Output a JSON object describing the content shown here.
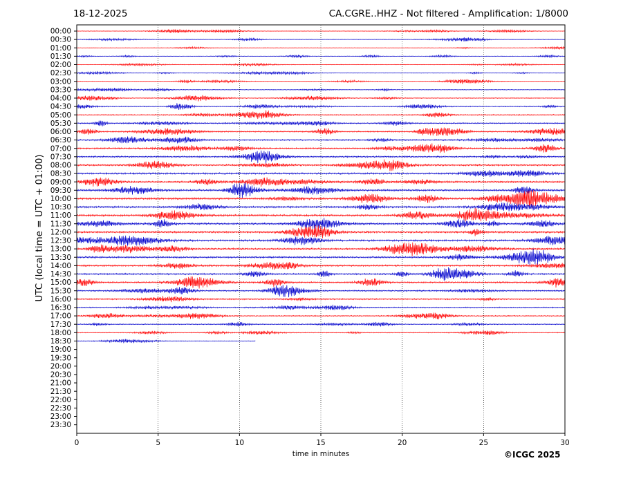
{
  "header": {
    "date": "18-12-2025",
    "title": "CA.CGRE..HHZ - Not filtered - Amplification: 1/8000"
  },
  "footer": {
    "copyright": "©ICGC 2025"
  },
  "colors": {
    "trace_a": "#ff0000",
    "trace_b": "#0000cc",
    "grid": "#000000"
  },
  "chart_data": {
    "type": "line",
    "subtype": "helicorder",
    "title": "CA.CGRE..HHZ - Not filtered - Amplification: 1/8000",
    "xlabel": "time in minutes",
    "ylabel": "UTC (local time = UTC + 01:00)",
    "xlim": [
      0,
      30
    ],
    "x_ticks": [
      0,
      5,
      10,
      15,
      20,
      25,
      30
    ],
    "grid": "vertical dotted at x ticks",
    "row_labels": [
      "00:00",
      "00:30",
      "01:00",
      "01:30",
      "02:00",
      "02:30",
      "03:00",
      "03:30",
      "04:00",
      "04:30",
      "05:00",
      "05:30",
      "06:00",
      "06:30",
      "07:00",
      "07:30",
      "08:00",
      "08:30",
      "09:00",
      "09:30",
      "10:00",
      "10:30",
      "11:00",
      "11:30",
      "12:00",
      "12:30",
      "13:00",
      "13:30",
      "14:00",
      "14:30",
      "15:00",
      "15:30",
      "16:00",
      "16:30",
      "17:00",
      "17:30",
      "18:00",
      "18:30",
      "19:00",
      "19:30",
      "20:00",
      "20:30",
      "21:00",
      "21:30",
      "22:00",
      "22:30",
      "23:00",
      "23:30"
    ],
    "rows_recorded": 38,
    "last_row_end_minute": 11,
    "row_colors": [
      "red",
      "blue"
    ]
  }
}
